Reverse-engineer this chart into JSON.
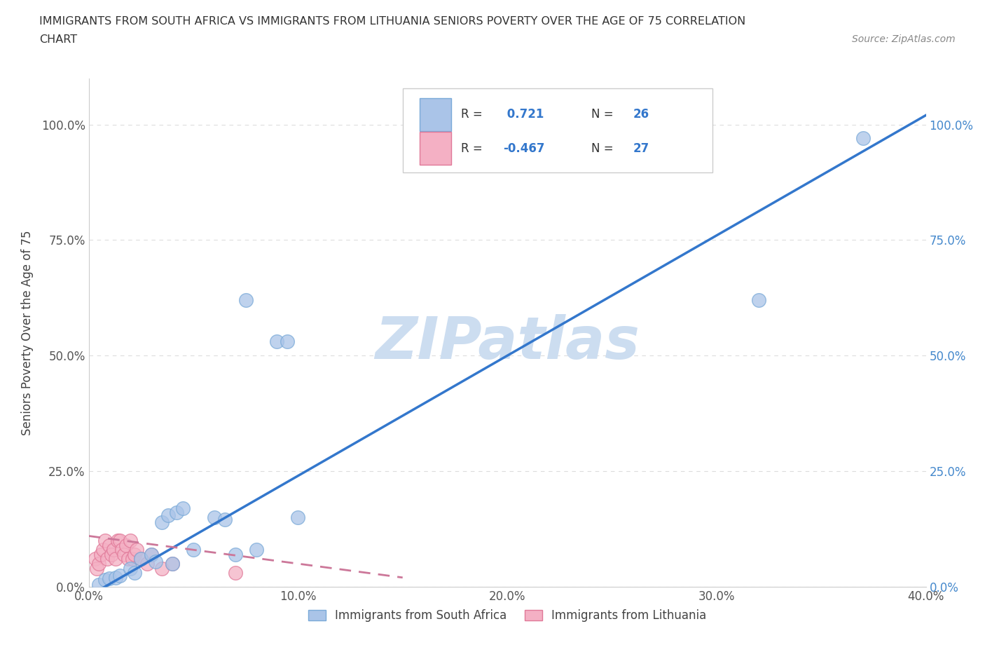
{
  "title_line1": "IMMIGRANTS FROM SOUTH AFRICA VS IMMIGRANTS FROM LITHUANIA SENIORS POVERTY OVER THE AGE OF 75 CORRELATION",
  "title_line2": "CHART",
  "source": "Source: ZipAtlas.com",
  "ylabel": "Seniors Poverty Over the Age of 75",
  "xlim": [
    0.0,
    0.4
  ],
  "ylim": [
    0.0,
    1.1
  ],
  "xticks": [
    0.0,
    0.1,
    0.2,
    0.3,
    0.4
  ],
  "xtick_labels": [
    "0.0%",
    "10.0%",
    "20.0%",
    "30.0%",
    "40.0%"
  ],
  "yticks": [
    0.0,
    0.25,
    0.5,
    0.75,
    1.0
  ],
  "ytick_labels": [
    "0.0%",
    "25.0%",
    "50.0%",
    "75.0%",
    "100.0%"
  ],
  "R_south_africa": 0.721,
  "N_south_africa": 26,
  "R_lithuania": -0.467,
  "N_lithuania": 27,
  "south_africa_color": "#aac4e8",
  "south_africa_edge": "#7aaad8",
  "lithuania_color": "#f4b0c4",
  "lithuania_edge": "#e07898",
  "trendline_sa_color": "#3377cc",
  "trendline_lt_color": "#cc7799",
  "watermark_color": "#ccddf0",
  "watermark_text": "ZIPatlas",
  "background_color": "#ffffff",
  "grid_color": "#dddddd",
  "south_africa_x": [
    0.005,
    0.008,
    0.01,
    0.013,
    0.015,
    0.02,
    0.022,
    0.025,
    0.03,
    0.032,
    0.035,
    0.038,
    0.04,
    0.042,
    0.045,
    0.05,
    0.06,
    0.065,
    0.07,
    0.075,
    0.08,
    0.09,
    0.095,
    0.1,
    0.32,
    0.37
  ],
  "south_africa_y": [
    0.005,
    0.015,
    0.018,
    0.02,
    0.025,
    0.04,
    0.03,
    0.06,
    0.07,
    0.055,
    0.14,
    0.155,
    0.05,
    0.16,
    0.17,
    0.08,
    0.15,
    0.145,
    0.07,
    0.62,
    0.08,
    0.53,
    0.53,
    0.15,
    0.62,
    0.97
  ],
  "lithuania_x": [
    0.003,
    0.004,
    0.005,
    0.006,
    0.007,
    0.008,
    0.009,
    0.01,
    0.011,
    0.012,
    0.013,
    0.014,
    0.015,
    0.016,
    0.017,
    0.018,
    0.019,
    0.02,
    0.021,
    0.022,
    0.023,
    0.025,
    0.028,
    0.03,
    0.035,
    0.04,
    0.07
  ],
  "lithuania_y": [
    0.06,
    0.04,
    0.05,
    0.07,
    0.08,
    0.1,
    0.06,
    0.09,
    0.07,
    0.08,
    0.06,
    0.1,
    0.1,
    0.08,
    0.07,
    0.09,
    0.06,
    0.1,
    0.06,
    0.07,
    0.08,
    0.06,
    0.05,
    0.07,
    0.04,
    0.05,
    0.03
  ],
  "legend_label_sa": "Immigrants from South Africa",
  "legend_label_lt": "Immigrants from Lithuania"
}
